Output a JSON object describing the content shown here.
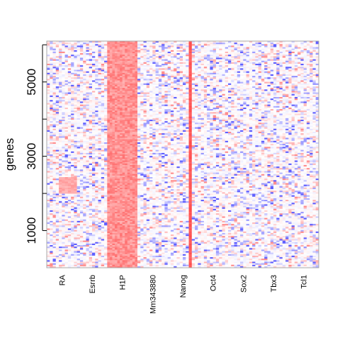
{
  "chart_data": {
    "type": "heatmap",
    "title": "",
    "xlabel": "",
    "ylabel": "genes",
    "ylim": [
      0,
      6100
    ],
    "y_ticks": [
      1000,
      2000,
      3000,
      4000,
      5000,
      6000
    ],
    "y_tick_labels": [
      "1000",
      "3000",
      "5000"
    ],
    "y_labeled_ticks": [
      1000,
      3000,
      5000
    ],
    "columns": [
      {
        "label": "RA",
        "bands": 10,
        "mean_level": 0.05,
        "note": "mixed, stronger red block near genes 2000-2400"
      },
      {
        "label": "Esrrb",
        "bands": 10,
        "mean_level": 0.0
      },
      {
        "label": "H1P",
        "bands": 12,
        "mean_level": 0.75
      },
      {
        "label": "Mm343880",
        "bands": 10,
        "mean_level": 0.0
      },
      {
        "label": "Nanog",
        "bands": 10,
        "mean_level": 0.0,
        "note": "one strongly red narrow band"
      },
      {
        "label": "Oct4",
        "bands": 10,
        "mean_level": 0.0
      },
      {
        "label": "Sox2",
        "bands": 10,
        "mean_level": 0.0
      },
      {
        "label": "Tbx3",
        "bands": 10,
        "mean_level": 0.0
      },
      {
        "label": "Tcl1",
        "bands": 10,
        "mean_level": 0.0
      }
    ],
    "color_scale": {
      "low": "#3333ff",
      "mid": "#ffffff",
      "high": "#ff4444"
    },
    "grid": false,
    "legend": "none"
  }
}
